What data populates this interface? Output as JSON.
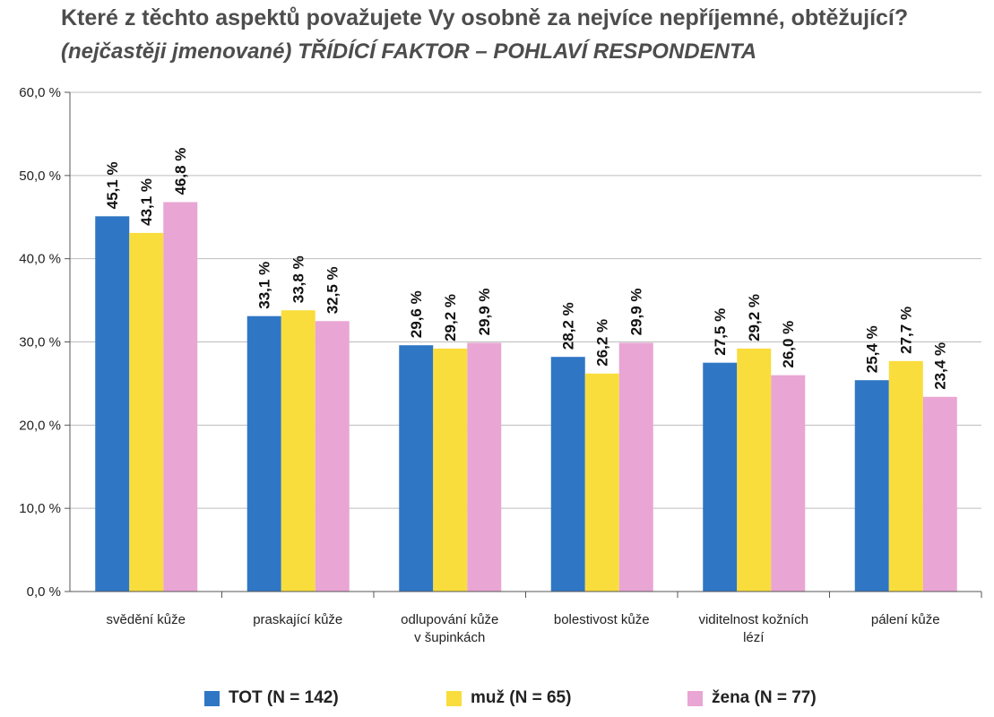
{
  "chart_data": {
    "type": "bar",
    "title": "Které z těchto aspektů považujete Vy osobně za nejvíce nepříjemné, obtěžující?",
    "subtitle": "(nejčastěji jmenované) TŘÍDÍCÍ FAKTOR – POHLAVÍ RESPONDENTA",
    "categories": [
      [
        "svědění kůže"
      ],
      [
        "praskající kůže"
      ],
      [
        "odlupování kůže",
        "v šupinkách"
      ],
      [
        "bolestivost kůže"
      ],
      [
        "viditelnost kožních",
        "lézí"
      ],
      [
        "pálení kůže"
      ]
    ],
    "series": [
      {
        "name": "TOT (N = 142)",
        "color": "#2f76c4",
        "values": [
          45.1,
          33.1,
          29.6,
          28.2,
          27.5,
          25.4
        ],
        "labels": [
          "45,1 %",
          "33,1 %",
          "29,6 %",
          "28,2 %",
          "27,5 %",
          "25,4 %"
        ]
      },
      {
        "name": "muž (N = 65)",
        "color": "#f9dd3c",
        "values": [
          43.1,
          33.8,
          29.2,
          26.2,
          29.2,
          27.7
        ],
        "labels": [
          "43,1 %",
          "33,8 %",
          "29,2 %",
          "26,2 %",
          "29,2 %",
          "27,7 %"
        ]
      },
      {
        "name": "žena (N = 77)",
        "color": "#e9a5d3",
        "values": [
          46.8,
          32.5,
          29.9,
          29.9,
          26.0,
          23.4
        ],
        "labels": [
          "46,8 %",
          "32,5 %",
          "29,9 %",
          "29,9 %",
          "26,0 %",
          "23,4 %"
        ]
      }
    ],
    "ylim": [
      0,
      60
    ],
    "yticks": [
      0,
      10,
      20,
      30,
      40,
      50,
      60
    ],
    "ytick_labels": [
      "0,0 %",
      "10,0 %",
      "20,0 %",
      "30,0 %",
      "40,0 %",
      "50,0 %",
      "60,0 %"
    ],
    "grid": true,
    "legend": "bottom"
  }
}
